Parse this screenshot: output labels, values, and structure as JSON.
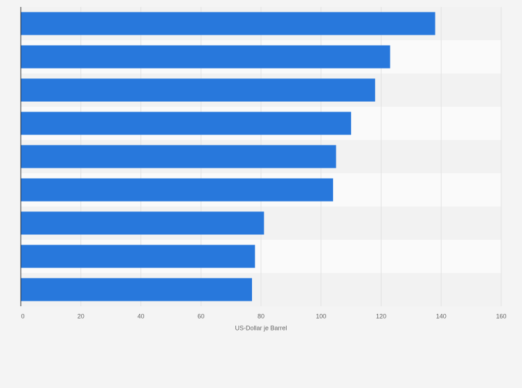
{
  "chart_data": {
    "type": "bar",
    "orientation": "horizontal",
    "categories": [
      null,
      null,
      null,
      null,
      null,
      null,
      null,
      null,
      null
    ],
    "values": [
      138,
      123,
      118,
      110,
      105,
      104,
      81,
      78,
      77
    ],
    "color": "#2878dc",
    "xlabel": "US-Dollar je Barrel",
    "xlim": [
      0,
      160
    ],
    "xticks": [
      0,
      20,
      40,
      60,
      80,
      100,
      120,
      140,
      160
    ],
    "grid": true
  }
}
